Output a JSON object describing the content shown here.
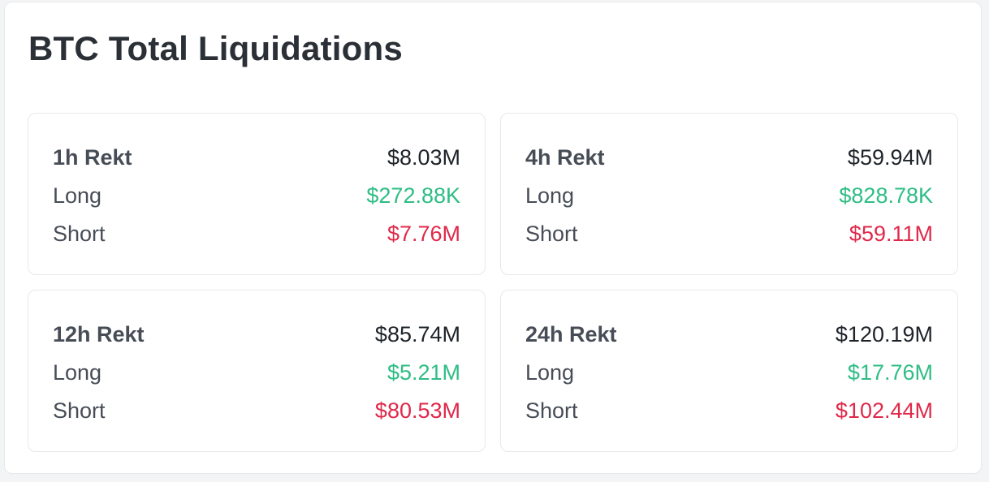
{
  "title": "BTC Total Liquidations",
  "colors": {
    "long": "#2ebd85",
    "short": "#e0294a",
    "text": "#1e2329"
  },
  "cards": [
    {
      "period": "1h Rekt",
      "total": "$8.03M",
      "long_label": "Long",
      "long": "$272.88K",
      "short_label": "Short",
      "short": "$7.76M"
    },
    {
      "period": "4h Rekt",
      "total": "$59.94M",
      "long_label": "Long",
      "long": "$828.78K",
      "short_label": "Short",
      "short": "$59.11M"
    },
    {
      "period": "12h Rekt",
      "total": "$85.74M",
      "long_label": "Long",
      "long": "$5.21M",
      "short_label": "Short",
      "short": "$80.53M"
    },
    {
      "period": "24h Rekt",
      "total": "$120.19M",
      "long_label": "Long",
      "long": "$17.76M",
      "short_label": "Short",
      "short": "$102.44M"
    }
  ]
}
